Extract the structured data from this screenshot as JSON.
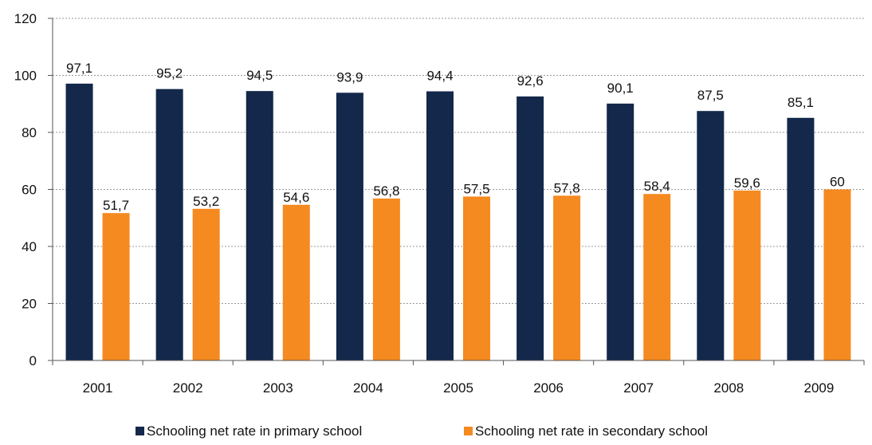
{
  "chart_data": {
    "type": "bar",
    "title": "",
    "xlabel": "",
    "ylabel": "",
    "ylim": [
      0,
      120
    ],
    "yticks": [
      0,
      20,
      40,
      60,
      80,
      100,
      120
    ],
    "grid": true,
    "legend_position": "bottom",
    "categories": [
      "2001",
      "2002",
      "2003",
      "2004",
      "2005",
      "2006",
      "2007",
      "2008",
      "2009"
    ],
    "series": [
      {
        "name": "Schooling net rate in primary school",
        "color": "#13284a",
        "values": [
          97.1,
          95.2,
          94.5,
          93.9,
          94.4,
          92.6,
          90.1,
          87.5,
          85.1
        ],
        "labels": [
          "97,1",
          "95,2",
          "94,5",
          "93,9",
          "94,4",
          "92,6",
          "90,1",
          "87,5",
          "85,1"
        ]
      },
      {
        "name": "Schooling net rate in secondary school",
        "color": "#f58a20",
        "values": [
          51.7,
          53.2,
          54.6,
          56.8,
          57.5,
          57.8,
          58.4,
          59.6,
          60
        ],
        "labels": [
          "51,7",
          "53,2",
          "54,6",
          "56,8",
          "57,5",
          "57,8",
          "58,4",
          "59,6",
          "60"
        ]
      }
    ]
  }
}
